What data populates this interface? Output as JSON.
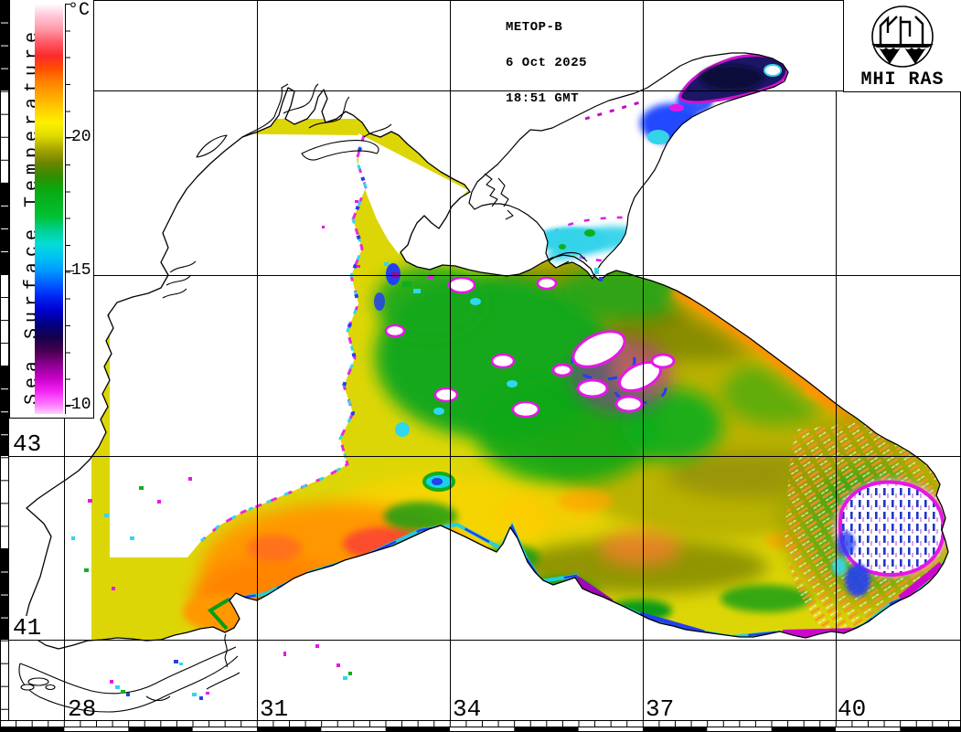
{
  "header": {
    "satellite": "METOP-B",
    "date": "6 Oct 2025",
    "time": "18:51 GMT"
  },
  "logo": {
    "text": "MHI RAS"
  },
  "colorbar": {
    "unit": "°C",
    "label": "Sea Surface Temperature",
    "ticks": [
      "20",
      "15",
      "10"
    ],
    "tick_values": [
      20,
      15,
      10
    ],
    "minor_step_c": 1,
    "max_c": 25,
    "min_c": 10,
    "scale_stops": [
      {
        "t": 25,
        "color": "#ffffff"
      },
      {
        "t": 24,
        "color": "#ff9aa8"
      },
      {
        "t": 23,
        "color": "#fb2b2b"
      },
      {
        "t": 22,
        "color": "#ff8400"
      },
      {
        "t": 21,
        "color": "#ffd000"
      },
      {
        "t": 20,
        "color": "#ded800"
      },
      {
        "t": 19,
        "color": "#6d8400"
      },
      {
        "t": 18,
        "color": "#0ba811"
      },
      {
        "t": 16,
        "color": "#06dcd7"
      },
      {
        "t": 15,
        "color": "#009cff"
      },
      {
        "t": 13,
        "color": "#000082"
      },
      {
        "t": 12,
        "color": "#46004f"
      },
      {
        "t": 11,
        "color": "#c400c4"
      },
      {
        "t": 10,
        "color": "#ff7dff"
      }
    ]
  },
  "grid": {
    "lat_labels": [
      "43",
      "41"
    ],
    "lon_labels": [
      "28",
      "31",
      "34",
      "37",
      "40"
    ]
  }
}
